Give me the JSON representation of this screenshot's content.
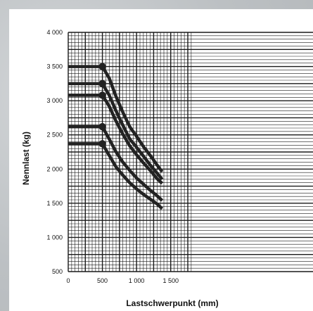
{
  "chart_data": {
    "type": "line",
    "title": "",
    "xlabel": "Lastschwerpunkt (mm)",
    "ylabel": "Nennlast (kg)",
    "xlim": [
      0,
      1700
    ],
    "ylim": [
      500,
      4000
    ],
    "x_ticks": [
      0,
      500,
      1000,
      1500
    ],
    "x_tick_labels": [
      "0",
      "500",
      "1 000",
      "1 500"
    ],
    "y_ticks": [
      500,
      1000,
      1500,
      2000,
      2500,
      3000,
      3500,
      4000
    ],
    "y_tick_labels": [
      "500",
      "1 000",
      "1 500",
      "2 000",
      "2 500",
      "3 000",
      "3 500",
      "4 000"
    ],
    "grid": true,
    "legend": "none",
    "colors": {
      "line": "#222222",
      "grid": "#1a1a1a",
      "background": "#ffffff"
    },
    "series": [
      {
        "x": [
          0,
          500,
          600,
          700,
          800,
          900,
          1000,
          1100,
          1200,
          1300,
          1375
        ],
        "y": [
          3500,
          3500,
          3330,
          3060,
          2830,
          2620,
          2480,
          2330,
          2200,
          2060,
          1960
        ]
      },
      {
        "x": [
          0,
          500,
          600,
          700,
          800,
          900,
          1000,
          1100,
          1200,
          1300,
          1375
        ],
        "y": [
          3250,
          3250,
          3080,
          2850,
          2640,
          2440,
          2320,
          2190,
          2060,
          1940,
          1850
        ]
      },
      {
        "x": [
          0,
          500,
          600,
          700,
          800,
          900,
          1000,
          1100,
          1200,
          1300,
          1375
        ],
        "y": [
          3080,
          3080,
          2920,
          2700,
          2510,
          2340,
          2210,
          2090,
          1980,
          1860,
          1790
        ]
      },
      {
        "x": [
          0,
          500,
          600,
          700,
          800,
          900,
          1000,
          1100,
          1200,
          1300,
          1375
        ],
        "y": [
          2620,
          2620,
          2440,
          2250,
          2100,
          1980,
          1870,
          1780,
          1690,
          1610,
          1540
        ]
      },
      {
        "x": [
          0,
          500,
          600,
          700,
          800,
          900,
          1000,
          1100,
          1200,
          1300,
          1375
        ],
        "y": [
          2370,
          2370,
          2200,
          2030,
          1910,
          1800,
          1710,
          1630,
          1560,
          1490,
          1420
        ]
      }
    ]
  }
}
